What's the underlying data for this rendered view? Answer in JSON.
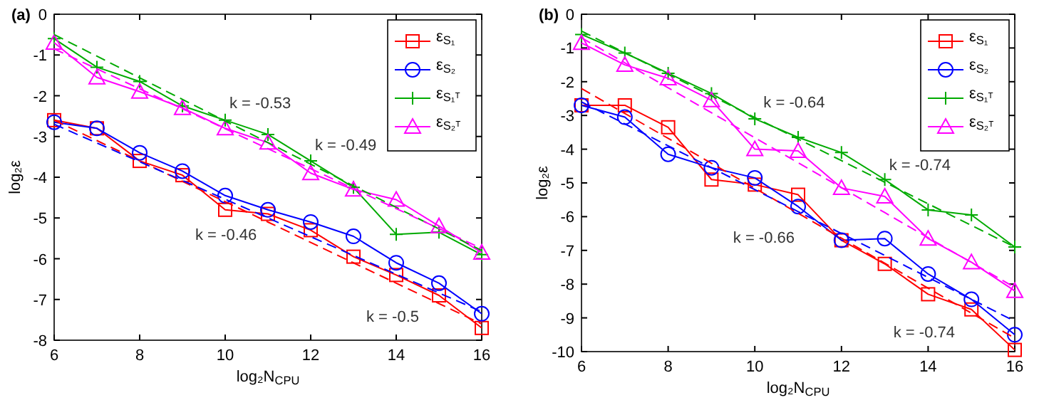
{
  "chart_data": [
    {
      "type": "line",
      "title": "(a)",
      "xlabel": "log₂N$_{CPU}$",
      "ylabel": "log₂ε",
      "x": [
        6,
        7,
        8,
        9,
        10,
        11,
        12,
        13,
        14,
        15,
        16
      ],
      "xlim": [
        6,
        16
      ],
      "xticks": [
        6,
        8,
        10,
        12,
        14,
        16
      ],
      "ylim": [
        -8,
        0
      ],
      "yticks": [
        -8,
        -7,
        -6,
        -5,
        -4,
        -3,
        -2,
        -1,
        0
      ],
      "grid": false,
      "legend": "top right",
      "series": [
        {
          "name": "ε$_{S₁}$",
          "color": "#ff0000",
          "marker": "square",
          "line_style": "solid",
          "values": [
            -2.6,
            -2.8,
            -3.6,
            -3.95,
            -4.8,
            -4.9,
            -5.3,
            -5.95,
            -6.4,
            -6.9,
            -7.7
          ]
        },
        {
          "name": "ε$_{S₂}$",
          "color": "#0000ff",
          "marker": "circle",
          "line_style": "solid",
          "values": [
            -2.65,
            -2.8,
            -3.4,
            -3.85,
            -4.45,
            -4.8,
            -5.1,
            -5.45,
            -6.1,
            -6.6,
            -7.35
          ]
        },
        {
          "name": "ε$_{S₁ᵀ}$",
          "color": "#00aa00",
          "marker": "cross",
          "line_style": "solid",
          "values": [
            -0.6,
            -1.3,
            -1.65,
            -2.25,
            -2.6,
            -2.95,
            -3.6,
            -4.25,
            -5.4,
            -5.35,
            -5.9
          ]
        },
        {
          "name": "ε$_{S₂ᵀ}$",
          "color": "#ff00ff",
          "marker": "triangle",
          "line_style": "solid",
          "values": [
            -0.7,
            -1.55,
            -1.9,
            -2.3,
            -2.8,
            -3.15,
            -3.9,
            -4.3,
            -4.55,
            -5.2,
            -5.85
          ]
        },
        {
          "color": "#ff0000",
          "marker": "none",
          "line_style": "dashed",
          "values": [
            -2.6,
            -3.1,
            -3.6,
            -4.1,
            -4.6,
            -5.1,
            -5.6,
            -6.1,
            -6.6,
            -7.1,
            -7.6
          ]
        },
        {
          "color": "#0000ff",
          "marker": "none",
          "line_style": "dashed",
          "values": [
            -2.7,
            -3.16,
            -3.62,
            -4.08,
            -4.54,
            -5.0,
            -5.46,
            -5.92,
            -6.38,
            -6.84,
            -7.3
          ]
        },
        {
          "color": "#00aa00",
          "marker": "none",
          "line_style": "dashed",
          "values": [
            -0.5,
            -1.03,
            -1.56,
            -2.09,
            -2.62,
            -3.15,
            -3.68,
            -4.21,
            -4.74,
            -5.27,
            -5.8
          ]
        },
        {
          "color": "#ff00ff",
          "marker": "none",
          "line_style": "dashed",
          "values": [
            -0.85,
            -1.34,
            -1.83,
            -2.32,
            -2.81,
            -3.3,
            -3.79,
            -4.28,
            -4.77,
            -5.26,
            -5.75
          ]
        }
      ],
      "annotations": [
        "k = -0.53",
        "k = -0.49",
        "k = -0.46",
        "k = -0.5"
      ]
    },
    {
      "type": "line",
      "title": "(b)",
      "xlabel": "log₂N$_{CPU}$",
      "ylabel": "log₂ε",
      "x": [
        6,
        7,
        8,
        9,
        10,
        11,
        12,
        13,
        14,
        15,
        16
      ],
      "xlim": [
        6,
        16
      ],
      "xticks": [
        6,
        8,
        10,
        12,
        14,
        16
      ],
      "ylim": [
        -10,
        0
      ],
      "yticks": [
        -10,
        -9,
        -8,
        -7,
        -6,
        -5,
        -4,
        -3,
        -2,
        -1,
        0
      ],
      "grid": false,
      "legend": "top right",
      "series": [
        {
          "name": "ε$_{S₁}$",
          "color": "#ff0000",
          "marker": "square",
          "line_style": "solid",
          "values": [
            -2.7,
            -2.7,
            -3.35,
            -4.9,
            -5.05,
            -5.35,
            -6.7,
            -7.4,
            -8.3,
            -8.75,
            -9.95
          ]
        },
        {
          "name": "ε$_{S₂}$",
          "color": "#0000ff",
          "marker": "circle",
          "line_style": "solid",
          "values": [
            -2.7,
            -3.05,
            -4.15,
            -4.55,
            -4.85,
            -5.7,
            -6.7,
            -6.65,
            -7.7,
            -8.45,
            -9.5
          ]
        },
        {
          "name": "ε$_{S₁ᵀ}$",
          "color": "#00aa00",
          "marker": "cross",
          "line_style": "solid",
          "values": [
            -0.6,
            -1.15,
            -1.75,
            -2.35,
            -3.1,
            -3.65,
            -4.1,
            -4.9,
            -5.8,
            -5.95,
            -6.9
          ]
        },
        {
          "name": "ε$_{S₂ᵀ}$",
          "color": "#ff00ff",
          "marker": "triangle",
          "line_style": "solid",
          "values": [
            -0.85,
            -1.5,
            -1.9,
            -2.55,
            -4.0,
            -4.05,
            -5.15,
            -5.4,
            -6.65,
            -7.35,
            -8.2
          ]
        },
        {
          "color": "#ff0000",
          "marker": "none",
          "line_style": "dashed",
          "values": [
            -2.2,
            -2.94,
            -3.68,
            -4.42,
            -5.16,
            -5.9,
            -6.64,
            -7.38,
            -8.12,
            -8.86,
            -9.6
          ]
        },
        {
          "color": "#0000ff",
          "marker": "none",
          "line_style": "dashed",
          "values": [
            -2.6,
            -3.25,
            -3.9,
            -4.55,
            -5.2,
            -5.85,
            -6.5,
            -7.15,
            -7.8,
            -8.45,
            -9.1
          ]
        },
        {
          "color": "#00aa00",
          "marker": "none",
          "line_style": "dashed",
          "values": [
            -0.5,
            -1.14,
            -1.78,
            -2.42,
            -3.06,
            -3.7,
            -4.34,
            -4.98,
            -5.62,
            -6.26,
            -6.9
          ]
        },
        {
          "color": "#ff00ff",
          "marker": "none",
          "line_style": "dashed",
          "values": [
            -0.7,
            -1.44,
            -2.18,
            -2.92,
            -3.66,
            -4.4,
            -5.14,
            -5.88,
            -6.62,
            -7.36,
            -8.1
          ]
        }
      ],
      "annotations": [
        "k = -0.64",
        "k = -0.74",
        "k = -0.66",
        "k = -0.74"
      ]
    }
  ]
}
